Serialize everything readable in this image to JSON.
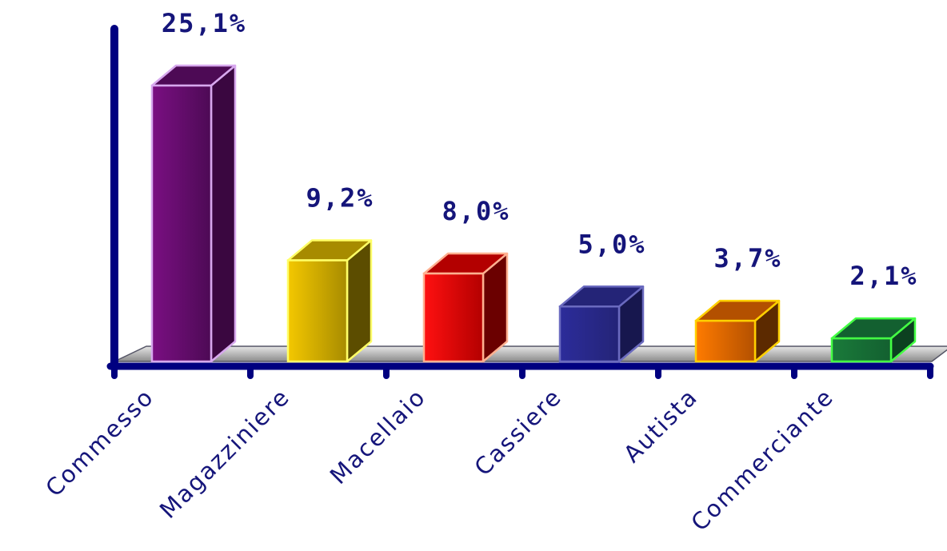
{
  "chart_data": {
    "type": "bar",
    "categories": [
      "Commesso",
      "Magazziniere",
      "Macellaio",
      "Cassiere",
      "Autista",
      "Commerciante"
    ],
    "values": [
      25.1,
      9.2,
      8.0,
      5.0,
      3.7,
      2.1
    ],
    "value_labels": [
      "25,1%",
      "9,2%",
      "8,0%",
      "5,0%",
      "3,7%",
      "2,1%"
    ],
    "title": "",
    "xlabel": "",
    "ylabel": "",
    "grid": false,
    "legend": "none",
    "style": "3d-columns",
    "colors": {
      "axis": "#000080",
      "label_text": "#15157a",
      "floor": "#b3b3b3",
      "bars": [
        {
          "front": "#7a0f82",
          "top": "#4d0a55",
          "side": "#3a0740",
          "edge": "#d7a8ee"
        },
        {
          "front": "#f4c800",
          "top": "#a78b00",
          "side": "#5c4d00",
          "edge": "#ffff66"
        },
        {
          "front": "#ff1010",
          "top": "#b30000",
          "side": "#6b0000",
          "edge": "#ffb090"
        },
        {
          "front": "#2c2c9a",
          "top": "#242477",
          "side": "#17174e",
          "edge": "#6a6abf"
        },
        {
          "front": "#ff7b00",
          "top": "#b35000",
          "side": "#5c2a00",
          "edge": "#ffd000"
        },
        {
          "front": "#1a7a3a",
          "top": "#136030",
          "side": "#0c4020",
          "edge": "#44ff44"
        }
      ]
    }
  }
}
